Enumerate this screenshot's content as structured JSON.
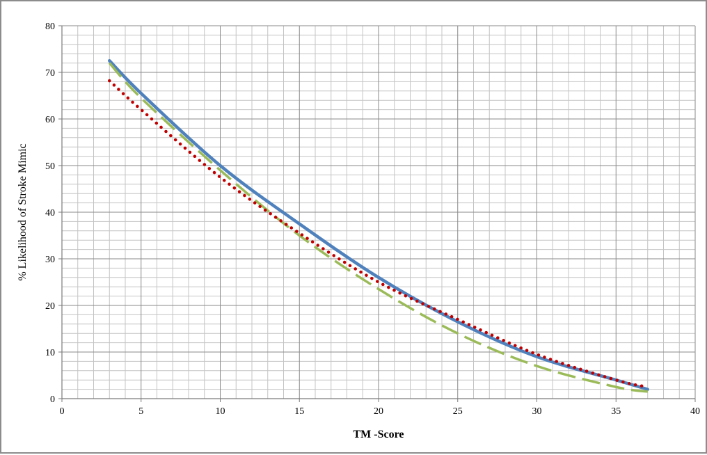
{
  "chart_data": {
    "type": "line",
    "title": "",
    "xlabel": "TM -Score",
    "ylabel": "% Likelihood of Stroke Mimic",
    "xlim": [
      0,
      40
    ],
    "ylim": [
      0,
      80
    ],
    "x_major_step": 5,
    "y_major_step": 10,
    "x_ticks": [
      "0",
      "5",
      "10",
      "15",
      "20",
      "25",
      "30",
      "35",
      "40"
    ],
    "y_ticks": [
      "0",
      "10",
      "20",
      "30",
      "40",
      "50",
      "60",
      "70",
      "80"
    ],
    "grid": true,
    "legend": "none",
    "series": [
      {
        "style": "solid",
        "color": "#4f81bd",
        "x": [
          3,
          5,
          10,
          15,
          20,
          25,
          30,
          35,
          37
        ],
        "y": [
          72.5,
          65.5,
          50,
          37.5,
          26,
          16.5,
          9,
          4,
          2
        ]
      },
      {
        "style": "dotted",
        "color": "#c00000",
        "x": [
          3,
          5,
          10,
          15,
          20,
          25,
          30,
          35,
          37
        ],
        "y": [
          68.2,
          62,
          47.5,
          35.5,
          25,
          17,
          9.5,
          4,
          2.5
        ]
      },
      {
        "style": "dashed",
        "color": "#9bbb59",
        "x": [
          3,
          5,
          10,
          15,
          20,
          25,
          30,
          35,
          37
        ],
        "y": [
          72,
          64.5,
          49,
          35,
          23.5,
          14,
          7,
          2.5,
          1.5
        ]
      }
    ]
  }
}
